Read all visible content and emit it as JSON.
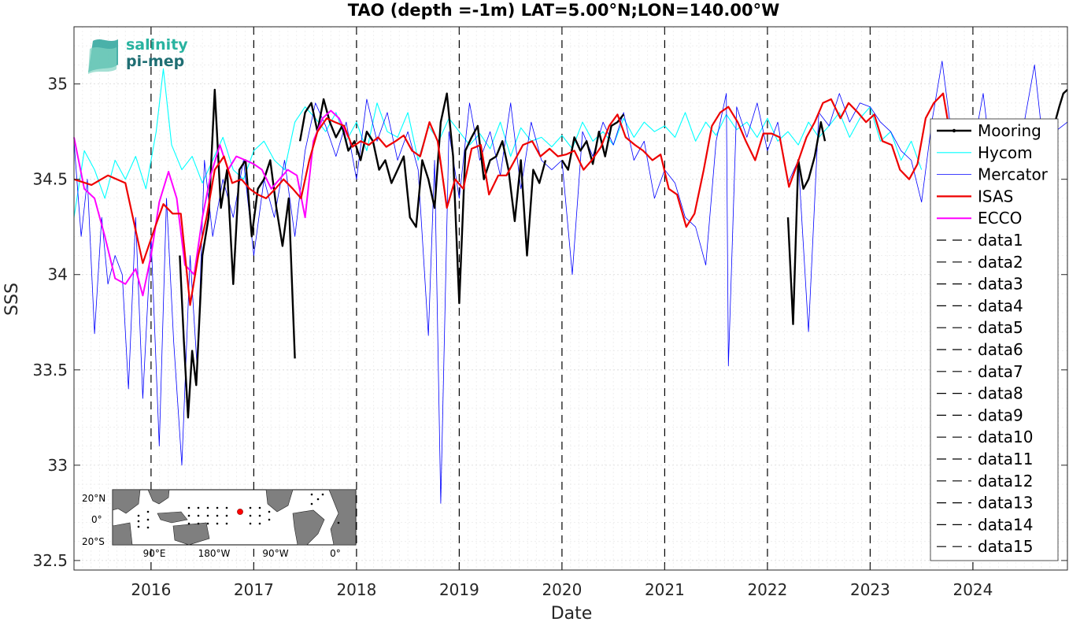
{
  "chart_data": {
    "type": "line",
    "title": "TAO (depth =-1m) LAT=5.00°N;LON=140.00°W",
    "xlabel": "Date",
    "ylabel": "SSS",
    "xlim": [
      2015.25,
      2024.92
    ],
    "ylim": [
      32.45,
      35.3
    ],
    "x_ticks": [
      "2016",
      "2017",
      "2018",
      "2019",
      "2020",
      "2021",
      "2022",
      "2023",
      "2024"
    ],
    "y_ticks": [
      "32.5",
      "33",
      "33.5",
      "34",
      "34.5",
      "35"
    ],
    "grid": true,
    "legend_position": "right",
    "logo": {
      "line1": "salinity",
      "line2": "pi-mep"
    },
    "inset_map": {
      "y_labels": [
        "20°N",
        "0°",
        "20°S"
      ],
      "x_labels": [
        "90°E",
        "180°W",
        "90°W",
        "0°"
      ],
      "marker_color": "#ff0000"
    },
    "vertical_dashed_lines_x": [
      2016.0,
      2017.0,
      2018.0,
      2019.0,
      2020.0,
      2021.0,
      2022.0,
      2023.0,
      2024.0
    ],
    "series": [
      {
        "name": "Mooring",
        "color": "#000000",
        "width": 2.4,
        "x": [
          2016.28,
          2016.32,
          2016.36,
          2016.4,
          2016.44,
          2016.5,
          2016.56,
          2016.62,
          2016.68,
          2016.74,
          2016.8,
          2016.86,
          2016.92,
          2016.98,
          2017.04,
          2017.1,
          2017.16,
          2017.22,
          2017.28,
          2017.34,
          2017.4,
          null,
          2017.45,
          2017.5,
          2017.56,
          2017.62,
          2017.68,
          2017.74,
          2017.8,
          2017.86,
          2017.92,
          2017.98,
          2018.04,
          2018.1,
          2018.16,
          2018.22,
          2018.28,
          2018.34,
          2018.4,
          2018.46,
          2018.52,
          2018.58,
          2018.64,
          2018.7,
          2018.76,
          2018.82,
          2018.88,
          2018.94,
          2019.0,
          2019.06,
          2019.12,
          2019.18,
          2019.24,
          2019.3,
          2019.36,
          2019.42,
          2019.48,
          2019.54,
          2019.6,
          2019.66,
          2019.72,
          2019.78,
          2019.84,
          null,
          2020.0,
          2020.06,
          2020.12,
          2020.18,
          2020.24,
          2020.3,
          2020.36,
          2020.42,
          2020.48,
          2020.54,
          2020.6,
          null,
          2022.2,
          2022.25,
          2022.3,
          2022.35,
          2022.4,
          2022.46,
          2022.52,
          2022.56,
          null,
          2024.8,
          2024.84,
          2024.88,
          2024.92
        ],
        "y": [
          34.1,
          33.65,
          33.25,
          33.6,
          33.42,
          34.1,
          34.3,
          34.97,
          34.35,
          34.55,
          33.95,
          34.55,
          34.6,
          34.2,
          34.45,
          34.5,
          34.6,
          34.35,
          34.15,
          34.4,
          33.56,
          null,
          34.7,
          34.85,
          34.9,
          34.75,
          34.92,
          34.8,
          34.72,
          34.78,
          34.65,
          34.7,
          34.6,
          34.75,
          34.7,
          34.55,
          34.6,
          34.48,
          34.55,
          34.62,
          34.3,
          34.25,
          34.6,
          34.5,
          34.35,
          34.8,
          34.95,
          34.62,
          33.85,
          34.65,
          34.72,
          34.78,
          34.5,
          34.6,
          34.62,
          34.7,
          34.55,
          34.28,
          34.6,
          34.1,
          34.55,
          34.48,
          34.6,
          null,
          34.6,
          34.55,
          34.72,
          34.65,
          34.7,
          34.58,
          34.75,
          34.62,
          34.78,
          34.8,
          34.84,
          null,
          34.3,
          33.74,
          34.6,
          34.45,
          34.5,
          34.62,
          34.8,
          34.7,
          null,
          34.8,
          34.88,
          34.95,
          34.97
        ]
      },
      {
        "name": "Hycom",
        "color": "#00ffff",
        "width": 1.1,
        "x": [
          2015.25,
          2015.35,
          2015.45,
          2015.55,
          2015.65,
          2015.75,
          2015.85,
          2015.95,
          2016.05,
          2016.12,
          2016.2,
          2016.3,
          2016.4,
          2016.5,
          2016.6,
          2016.7,
          2016.8,
          2016.9,
          2017.0,
          2017.1,
          2017.2,
          2017.3,
          2017.4,
          2017.5,
          2017.6,
          2017.7,
          2017.8,
          2017.9,
          2018.0,
          2018.1,
          2018.2,
          2018.3,
          2018.4,
          2018.5,
          2018.6,
          2018.7,
          2018.8,
          2018.9,
          2019.0,
          2019.1,
          2019.2,
          2019.3,
          2019.4,
          2019.5,
          2019.6,
          2019.7,
          2019.8,
          2019.9,
          2020.0,
          2020.1,
          2020.2,
          2020.3,
          2020.4,
          2020.5,
          2020.6,
          2020.7,
          2020.8,
          2020.9,
          2021.0,
          2021.1,
          2021.2,
          2021.3,
          2021.4,
          2021.5,
          2021.6,
          2021.7,
          2021.8,
          2021.9,
          2022.0,
          2022.1,
          2022.2,
          2022.3,
          2022.4,
          2022.5,
          2022.6,
          2022.7,
          2022.8,
          2022.9,
          2023.0,
          2023.1,
          2023.2,
          2023.3,
          2023.4,
          2023.5
        ],
        "y": [
          34.3,
          34.65,
          34.55,
          34.4,
          34.6,
          34.5,
          34.62,
          34.45,
          34.75,
          35.08,
          34.68,
          34.55,
          34.62,
          34.48,
          34.6,
          34.72,
          34.55,
          34.5,
          34.65,
          34.7,
          34.6,
          34.55,
          34.8,
          34.88,
          34.82,
          34.75,
          34.85,
          34.7,
          34.8,
          34.65,
          34.9,
          34.75,
          34.72,
          34.85,
          34.6,
          34.78,
          34.7,
          34.82,
          34.75,
          34.68,
          34.74,
          34.66,
          34.8,
          34.62,
          34.77,
          34.7,
          34.72,
          34.67,
          34.73,
          34.66,
          34.8,
          34.7,
          34.75,
          34.68,
          34.82,
          34.72,
          34.8,
          34.75,
          34.78,
          34.72,
          34.85,
          34.7,
          34.8,
          34.73,
          34.84,
          34.76,
          34.8,
          34.72,
          34.82,
          34.7,
          34.75,
          34.68,
          34.8,
          34.72,
          34.78,
          34.85,
          34.72,
          34.82,
          34.88,
          34.7,
          34.75,
          34.6,
          34.7,
          34.55
        ]
      },
      {
        "name": "Mercator",
        "color": "#0000ff",
        "width": 0.8,
        "x": [
          2015.25,
          2015.32,
          2015.38,
          2015.45,
          2015.52,
          2015.58,
          2015.65,
          2015.72,
          2015.78,
          2015.85,
          2015.92,
          2016.0,
          2016.08,
          2016.15,
          2016.22,
          2016.3,
          2016.38,
          2016.45,
          2016.52,
          2016.6,
          2016.7,
          2016.8,
          2016.9,
          2017.0,
          2017.1,
          2017.2,
          2017.3,
          2017.4,
          2017.5,
          2017.6,
          2017.7,
          2017.8,
          2017.9,
          2018.0,
          2018.1,
          2018.2,
          2018.3,
          2018.4,
          2018.5,
          2018.6,
          2018.7,
          2018.76,
          2018.82,
          2018.9,
          2019.0,
          2019.1,
          2019.2,
          2019.3,
          2019.4,
          2019.5,
          2019.6,
          2019.7,
          2019.8,
          2019.9,
          2020.0,
          2020.1,
          2020.2,
          2020.3,
          2020.4,
          2020.5,
          2020.6,
          2020.7,
          2020.8,
          2020.9,
          2021.0,
          2021.1,
          2021.2,
          2021.3,
          2021.4,
          2021.5,
          2021.6,
          2021.62,
          2021.7,
          2021.8,
          2021.9,
          2022.0,
          2022.1,
          2022.2,
          2022.3,
          2022.4,
          2022.5,
          2022.6,
          2022.7,
          2022.8,
          2022.9,
          2023.0,
          2023.1,
          2023.2,
          2023.3,
          2023.4,
          2023.5,
          2023.6,
          2023.7,
          2023.8,
          2023.9,
          2024.0,
          2024.1,
          2024.2,
          2024.3,
          2024.4,
          2024.5,
          2024.6,
          2024.7,
          2024.8,
          2024.92
        ],
        "y": [
          34.7,
          34.2,
          34.5,
          33.69,
          34.3,
          33.95,
          34.1,
          34.0,
          33.4,
          34.3,
          33.35,
          34.2,
          33.1,
          34.4,
          33.65,
          33.0,
          34.1,
          33.5,
          34.6,
          34.2,
          34.5,
          34.3,
          34.6,
          34.1,
          34.5,
          34.3,
          34.6,
          34.2,
          34.65,
          34.9,
          34.78,
          34.62,
          34.8,
          34.5,
          34.92,
          34.7,
          34.85,
          34.6,
          34.75,
          34.55,
          33.68,
          34.6,
          32.8,
          34.75,
          34.4,
          34.9,
          34.6,
          34.75,
          34.52,
          34.9,
          34.45,
          34.8,
          34.6,
          34.55,
          34.6,
          34.0,
          34.75,
          34.62,
          34.8,
          34.68,
          34.85,
          34.6,
          34.7,
          34.4,
          34.55,
          34.48,
          34.3,
          34.25,
          34.05,
          34.7,
          34.95,
          33.52,
          34.88,
          34.72,
          34.9,
          34.65,
          34.8,
          34.48,
          34.6,
          33.7,
          34.85,
          34.78,
          34.95,
          34.8,
          34.9,
          34.88,
          34.8,
          34.75,
          34.65,
          34.6,
          34.38,
          34.8,
          35.12,
          34.7,
          34.4,
          34.65,
          34.95,
          34.5,
          34.75,
          34.55,
          34.8,
          35.1,
          34.6,
          34.75,
          34.8
        ]
      },
      {
        "name": "ISAS",
        "color": "#ee0000",
        "width": 2.2,
        "x": [
          2015.25,
          2015.42,
          2015.58,
          2015.75,
          2015.92,
          2016.04,
          2016.12,
          2016.21,
          2016.29,
          2016.38,
          2016.46,
          2016.54,
          2016.62,
          2016.71,
          2016.79,
          2016.88,
          2016.96,
          2017.04,
          2017.12,
          2017.21,
          2017.29,
          2017.38,
          2017.46,
          2017.54,
          2017.62,
          2017.71,
          2017.79,
          2017.88,
          2017.96,
          2018.04,
          2018.12,
          2018.21,
          2018.29,
          2018.38,
          2018.46,
          2018.54,
          2018.62,
          2018.71,
          2018.79,
          2018.88,
          2018.96,
          2019.04,
          2019.12,
          2019.21,
          2019.29,
          2019.38,
          2019.46,
          2019.54,
          2019.62,
          2019.71,
          2019.79,
          2019.88,
          2019.96,
          2020.04,
          2020.12,
          2020.21,
          2020.29,
          2020.38,
          2020.46,
          2020.54,
          2020.62,
          2020.71,
          2020.79,
          2020.88,
          2020.96,
          2021.04,
          2021.12,
          2021.21,
          2021.29,
          2021.38,
          2021.46,
          2021.54,
          2021.62,
          2021.71,
          2021.79,
          2021.88,
          2021.96,
          2022.04,
          2022.12,
          2022.21,
          2022.29,
          2022.38,
          2022.46,
          2022.54,
          2022.62,
          2022.71,
          2022.79,
          2022.88,
          2022.96,
          2023.04,
          2023.12,
          2023.21,
          2023.29,
          2023.38,
          2023.46,
          2023.54,
          2023.62,
          2023.71,
          2023.79,
          2023.88
        ],
        "y": [
          34.5,
          34.47,
          34.52,
          34.48,
          34.06,
          34.25,
          34.37,
          34.32,
          34.32,
          33.84,
          34.1,
          34.3,
          34.55,
          34.62,
          34.48,
          34.5,
          34.45,
          34.42,
          34.4,
          34.45,
          34.5,
          34.45,
          34.4,
          34.6,
          34.75,
          34.82,
          34.8,
          34.78,
          34.67,
          34.7,
          34.68,
          34.72,
          34.67,
          34.7,
          34.73,
          34.65,
          34.62,
          34.8,
          34.7,
          34.35,
          34.5,
          34.45,
          34.66,
          34.68,
          34.42,
          34.52,
          34.52,
          34.6,
          34.68,
          34.7,
          34.62,
          34.66,
          34.62,
          34.63,
          34.65,
          34.55,
          34.6,
          34.67,
          34.78,
          34.84,
          34.72,
          34.68,
          34.65,
          34.6,
          34.63,
          34.45,
          34.42,
          34.25,
          34.32,
          34.55,
          34.78,
          34.85,
          34.88,
          34.8,
          34.7,
          34.6,
          34.74,
          34.74,
          34.72,
          34.46,
          34.58,
          34.72,
          34.8,
          34.9,
          34.92,
          34.82,
          34.9,
          34.85,
          34.8,
          34.84,
          34.7,
          34.68,
          34.55,
          34.5,
          34.58,
          34.82,
          34.9,
          34.95,
          34.7,
          34.6
        ]
      },
      {
        "name": "ECCO",
        "color": "#ff00ff",
        "width": 2.0,
        "x": [
          2015.25,
          2015.35,
          2015.45,
          2015.55,
          2015.65,
          2015.75,
          2015.85,
          2015.92,
          2016.0,
          2016.08,
          2016.17,
          2016.25,
          2016.33,
          2016.42,
          2016.5,
          2016.58,
          2016.67,
          2016.75,
          2016.83,
          2016.92,
          2017.0,
          2017.08,
          2017.17,
          2017.25,
          2017.33,
          2017.42,
          2017.5,
          2017.58,
          2017.67,
          2017.75,
          2017.83,
          2017.92
        ],
        "y": [
          34.72,
          34.45,
          34.4,
          34.2,
          33.98,
          33.95,
          34.03,
          33.89,
          34.1,
          34.38,
          34.54,
          34.4,
          34.05,
          34.0,
          34.3,
          34.52,
          34.68,
          34.55,
          34.62,
          34.6,
          34.58,
          34.55,
          34.45,
          34.5,
          34.55,
          34.52,
          34.3,
          34.7,
          34.82,
          34.86,
          34.82,
          34.72
        ]
      },
      {
        "name": "data1",
        "color": "#000000",
        "dashed": true
      },
      {
        "name": "data2",
        "color": "#000000",
        "dashed": true
      },
      {
        "name": "data3",
        "color": "#000000",
        "dashed": true
      },
      {
        "name": "data4",
        "color": "#000000",
        "dashed": true
      },
      {
        "name": "data5",
        "color": "#000000",
        "dashed": true
      },
      {
        "name": "data6",
        "color": "#000000",
        "dashed": true
      },
      {
        "name": "data7",
        "color": "#000000",
        "dashed": true
      },
      {
        "name": "data8",
        "color": "#000000",
        "dashed": true
      },
      {
        "name": "data9",
        "color": "#000000",
        "dashed": true
      },
      {
        "name": "data10",
        "color": "#000000",
        "dashed": true
      },
      {
        "name": "data11",
        "color": "#000000",
        "dashed": true
      },
      {
        "name": "data12",
        "color": "#000000",
        "dashed": true
      },
      {
        "name": "data13",
        "color": "#000000",
        "dashed": true
      },
      {
        "name": "data14",
        "color": "#000000",
        "dashed": true
      },
      {
        "name": "data15",
        "color": "#000000",
        "dashed": true
      }
    ]
  }
}
